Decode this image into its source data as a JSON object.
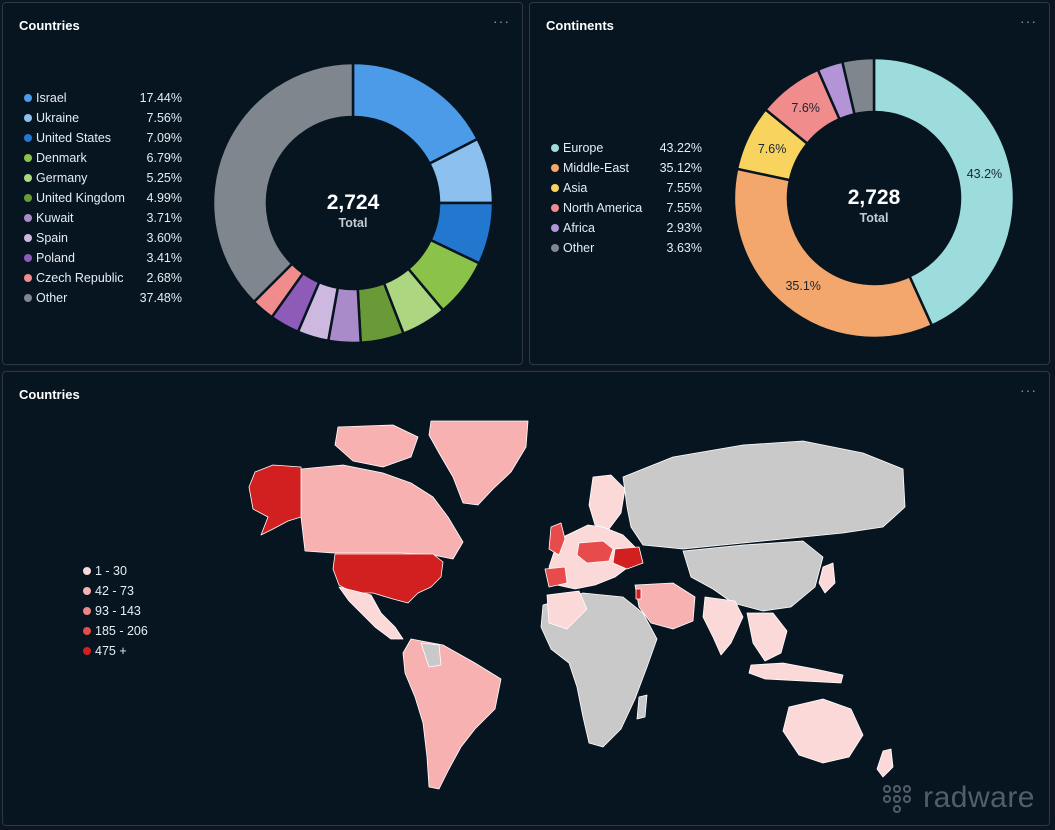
{
  "panels": {
    "countries_donut": {
      "title": "Countries",
      "menu": "···"
    },
    "continents_donut": {
      "title": "Continents",
      "menu": "···"
    },
    "countries_map": {
      "title": "Countries",
      "menu": "···"
    }
  },
  "chart_data": [
    {
      "type": "pie",
      "variant": "donut",
      "title": "Countries",
      "center_value": "2,724",
      "center_label": "Total",
      "legend_position": "left",
      "slices": [
        {
          "label": "Israel",
          "value_label": "17.44%",
          "value": 17.44,
          "color": "#4c9be8"
        },
        {
          "label": "Ukraine",
          "value_label": "7.56%",
          "value": 7.56,
          "color": "#8cc0ef"
        },
        {
          "label": "United States",
          "value_label": "7.09%",
          "value": 7.09,
          "color": "#2277cf"
        },
        {
          "label": "Denmark",
          "value_label": "6.79%",
          "value": 6.79,
          "color": "#8bc34a"
        },
        {
          "label": "Germany",
          "value_label": "5.25%",
          "value": 5.25,
          "color": "#acd67f"
        },
        {
          "label": "United Kingdom",
          "value_label": "4.99%",
          "value": 4.99,
          "color": "#6a9a38"
        },
        {
          "label": "Kuwait",
          "value_label": "3.71%",
          "value": 3.71,
          "color": "#a98bc9"
        },
        {
          "label": "Spain",
          "value_label": "3.60%",
          "value": 3.6,
          "color": "#cdb8e0"
        },
        {
          "label": "Poland",
          "value_label": "3.41%",
          "value": 3.41,
          "color": "#8e5bb8"
        },
        {
          "label": "Czech Republic",
          "value_label": "2.68%",
          "value": 2.68,
          "color": "#f08c8c"
        },
        {
          "label": "Other",
          "value_label": "37.48%",
          "value": 37.48,
          "color": "#7f868d"
        }
      ]
    },
    {
      "type": "pie",
      "variant": "donut",
      "title": "Continents",
      "center_value": "2,728",
      "center_label": "Total",
      "legend_position": "left",
      "slices": [
        {
          "label": "Europe",
          "value_label": "43.22%",
          "value": 43.22,
          "data_label": "43.2%",
          "color": "#9ddcdc"
        },
        {
          "label": "Middle-East",
          "value_label": "35.12%",
          "value": 35.12,
          "data_label": "35.1%",
          "color": "#f3a76c"
        },
        {
          "label": "Asia",
          "value_label": "7.55%",
          "value": 7.55,
          "data_label": "7.6%",
          "color": "#f8d35e"
        },
        {
          "label": "North America",
          "value_label": "7.55%",
          "value": 7.55,
          "data_label": "7.6%",
          "color": "#f08c8c"
        },
        {
          "label": "Africa",
          "value_label": "2.93%",
          "value": 2.93,
          "data_label": "",
          "color": "#b394d6"
        },
        {
          "label": "Other",
          "value_label": "3.63%",
          "value": 3.63,
          "data_label": "",
          "color": "#7f868d"
        }
      ]
    },
    {
      "type": "choropleth",
      "title": "Countries",
      "legend_position": "left",
      "no_data_color": "#c9c9c9",
      "legend": [
        {
          "label": "1 - 30",
          "color": "#fcd9d9"
        },
        {
          "label": "42 - 73",
          "color": "#f7b1b1"
        },
        {
          "label": "93 - 143",
          "color": "#f08787"
        },
        {
          "label": "185 - 206",
          "color": "#e84b4b"
        },
        {
          "label": "475 +",
          "color": "#d21f1f"
        }
      ]
    }
  ],
  "logo": {
    "text": "radware"
  }
}
